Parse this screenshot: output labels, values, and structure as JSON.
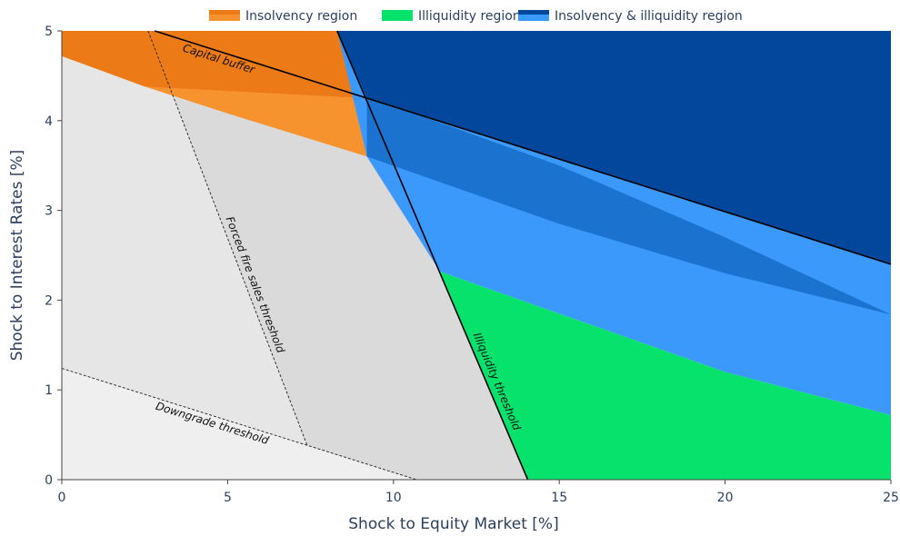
{
  "chart_data": {
    "type": "area",
    "xlabel": "Shock to Equity Market [%]",
    "ylabel": "Shock to Interest Rates [%]",
    "xlim": [
      0,
      25
    ],
    "ylim": [
      0,
      5
    ],
    "x_ticks": [
      0,
      5,
      10,
      15,
      20,
      25
    ],
    "y_ticks": [
      0,
      1,
      2,
      3,
      4,
      5
    ],
    "grid": false,
    "legend_position": "top",
    "legend": [
      {
        "label": "Insolvency region",
        "color": "#f7932f",
        "color_dark": "#ec7a16"
      },
      {
        "label": "Illiquidity region",
        "color": "#07e26c",
        "color_dark": "#07e26c"
      },
      {
        "label": "Insolvency & illiquidity region",
        "color": "#3a99fb",
        "color_dark": "#02479b"
      }
    ],
    "lines": {
      "capital_buffer": {
        "label": "Capital buffer",
        "points": [
          [
            2.8,
            5.0
          ],
          [
            25,
            2.4
          ]
        ]
      },
      "illiquidity_threshold": {
        "label": "Illiquidity threshold",
        "points": [
          [
            8.3,
            5.0
          ],
          [
            14.05,
            0
          ]
        ]
      },
      "forced_fire_sales_threshold": {
        "label": "Forced fire sales threshold",
        "points": [
          [
            2.6,
            5.0
          ],
          [
            7.4,
            0.38
          ]
        ]
      },
      "downgrade_threshold": {
        "label": "Downgrade threshold",
        "points": [
          [
            0,
            1.24
          ],
          [
            10.7,
            0
          ]
        ]
      }
    },
    "insolvency_boundary_upper": [
      [
        0,
        4.72
      ],
      [
        2.5,
        4.38
      ],
      [
        5,
        4.08
      ],
      [
        9.2,
        3.6
      ],
      [
        11.4,
        2.32
      ]
    ],
    "insolvency_boundary_lower": [
      [
        11.4,
        2.32
      ],
      [
        15,
        1.85
      ],
      [
        20,
        1.2
      ],
      [
        25,
        0.72
      ]
    ],
    "intermediate_band_upper": [
      [
        9.2,
        4.27
      ],
      [
        15,
        3.5
      ],
      [
        20,
        2.7
      ],
      [
        25,
        1.84
      ]
    ],
    "intermediate_band_lower": [
      [
        9.2,
        3.6
      ],
      [
        15,
        2.85
      ],
      [
        20,
        2.3
      ],
      [
        25,
        1.84
      ]
    ]
  }
}
